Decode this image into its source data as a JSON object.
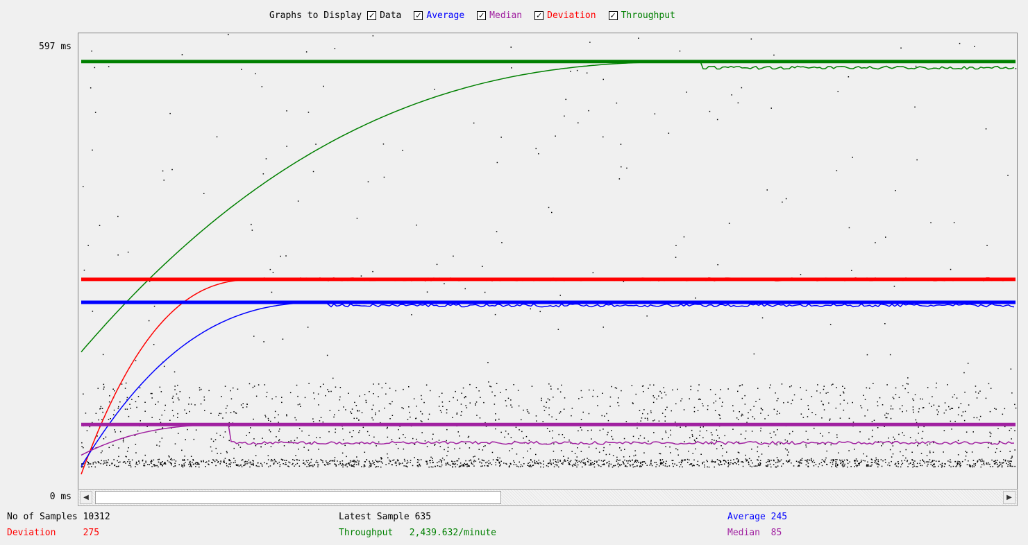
{
  "legend": {
    "label": "Graphs to Display",
    "items": [
      {
        "label": "Data",
        "color": "#000000",
        "checked": true
      },
      {
        "label": "Average",
        "color": "#0000ff",
        "checked": true
      },
      {
        "label": "Median",
        "color": "#a020a0",
        "checked": true
      },
      {
        "label": "Deviation",
        "color": "#ff0000",
        "checked": true
      },
      {
        "label": "Throughput",
        "color": "#008000",
        "checked": true
      }
    ]
  },
  "yaxis": {
    "max_label": "597 ms",
    "min_label": "0 ms"
  },
  "stats": {
    "samples_label": "No of Samples",
    "samples_value": "10312",
    "latest_label": "Latest Sample",
    "latest_value": "635",
    "average_label": "Average",
    "average_value": "245",
    "deviation_label": "Deviation",
    "deviation_value": "275",
    "throughput_label": "Throughput",
    "throughput_value": "2,439.632/minute",
    "median_label": "Median",
    "median_value": "85"
  },
  "chart_data": {
    "type": "scatter",
    "ylim": [
      0,
      597
    ],
    "series": [
      {
        "name": "Data",
        "color": "#000000",
        "band_low_ms": 30,
        "band_high_ms": 140
      },
      {
        "name": "Average",
        "color": "#0000ff",
        "final_ms": 245
      },
      {
        "name": "Median",
        "color": "#a020a0",
        "final_ms": 85
      },
      {
        "name": "Deviation",
        "color": "#ff0000",
        "final_ms": 275
      },
      {
        "name": "Throughput",
        "color": "#008000",
        "final_ms": 560
      }
    ]
  }
}
